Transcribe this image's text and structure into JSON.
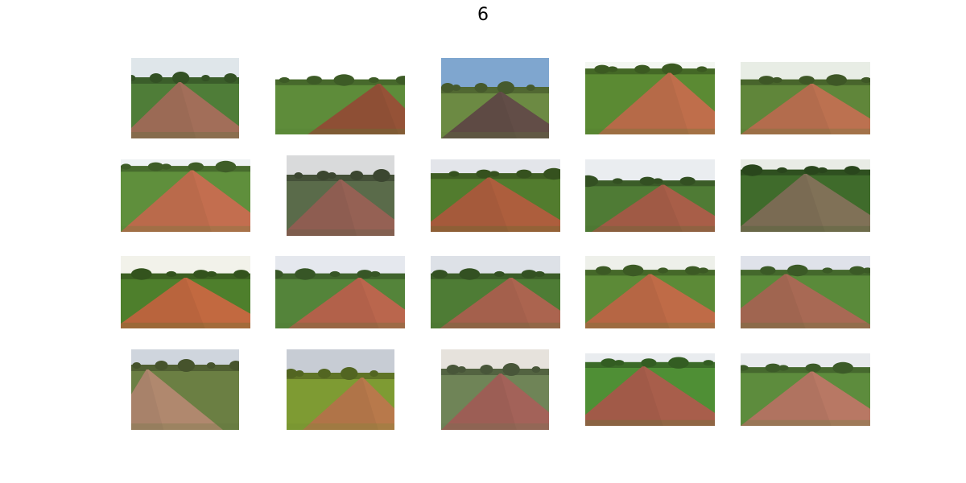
{
  "title": "6",
  "images": [
    {
      "scene": "road-left-trees",
      "sky": "#dfe6ea",
      "road": "#9b6a55",
      "veg": "#4f7d38"
    },
    {
      "scene": "field-tree",
      "sky": "#ffffff",
      "road": "#8e4f35",
      "veg": "#5e8c3a"
    },
    {
      "scene": "road-blue-sky-wall",
      "sky": "#7fa6cf",
      "road": "#5e4a44",
      "veg": "#6c8a43"
    },
    {
      "scene": "road-grass-bright",
      "sky": "#f4f7f2",
      "road": "#b66a48",
      "veg": "#5b8a33"
    },
    {
      "scene": "village-people",
      "sky": "#e8ede5",
      "road": "#b36c4d",
      "veg": "#60863a"
    },
    {
      "scene": "road-bushes",
      "sky": "#eef2f3",
      "road": "#ba6a4b",
      "veg": "#5f8f3c"
    },
    {
      "scene": "road-hazy",
      "sky": "#d9dadb",
      "road": "#8e5d51",
      "veg": "#5a6b4a"
    },
    {
      "scene": "roadside-crops",
      "sky": "#e3e5ea",
      "road": "#a55a3b",
      "veg": "#527c2e"
    },
    {
      "scene": "road-trees-overcast",
      "sky": "#eaedf0",
      "road": "#a05a45",
      "veg": "#4f7b35"
    },
    {
      "scene": "person-back-shirt",
      "sky": "#e9ece6",
      "road": "#7a6b53",
      "veg": "#3f6b2b"
    },
    {
      "scene": "corner-bushes",
      "sky": "#f2f2ea",
      "road": "#b9643d",
      "veg": "#4e7f2c"
    },
    {
      "scene": "road-person-walking",
      "sky": "#e5e8ee",
      "road": "#b2614a",
      "veg": "#54843a"
    },
    {
      "scene": "road-two-people",
      "sky": "#dde1e7",
      "road": "#a4604c",
      "veg": "#4e7c35"
    },
    {
      "scene": "road-tall-grass",
      "sky": "#eef0ea",
      "road": "#b66644",
      "veg": "#5c8a37"
    },
    {
      "scene": "wide-paved-road",
      "sky": "#dfe2ea",
      "road": "#a06550",
      "veg": "#5a8a3a"
    },
    {
      "scene": "road-buildings",
      "sky": "#cfd5dd",
      "road": "#a8826a",
      "veg": "#6b7f43"
    },
    {
      "scene": "cow-on-road",
      "sky": "#c7ccd4",
      "road": "#b07448",
      "veg": "#7e9b33"
    },
    {
      "scene": "road-faded",
      "sky": "#e6e2dc",
      "road": "#9c5e55",
      "veg": "#6f8457"
    },
    {
      "scene": "road-grass-tilted",
      "sky": "#e9ecef",
      "road": "#a15a48",
      "veg": "#4f8f35"
    },
    {
      "scene": "paved-road-pole",
      "sky": "#e8eaed",
      "road": "#b07360",
      "veg": "#5d8c3d"
    }
  ]
}
